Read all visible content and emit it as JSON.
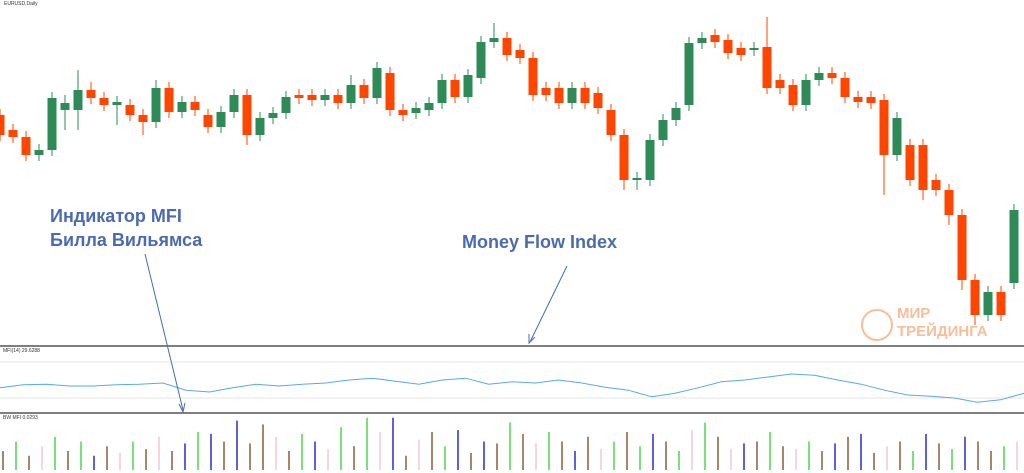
{
  "chart_data": [
    {
      "type": "candlestick",
      "title": "EURUSD,Daily",
      "up_color": "#2e8b57",
      "down_color": "#ff4500",
      "ylim": [
        0,
        345
      ],
      "annotations": [
        "Индикатор MFI",
        "Билла Вильямса",
        "Money Flow Index"
      ],
      "candles": [
        {
          "open": 230,
          "high": 236,
          "low": 204,
          "close": 210
        },
        {
          "open": 215,
          "high": 221,
          "low": 202,
          "close": 208
        },
        {
          "open": 208,
          "high": 214,
          "low": 184,
          "close": 190
        },
        {
          "open": 190,
          "high": 201,
          "low": 184,
          "close": 195
        },
        {
          "open": 195,
          "high": 253,
          "low": 189,
          "close": 247
        },
        {
          "open": 235,
          "high": 250,
          "low": 215,
          "close": 242
        },
        {
          "open": 235,
          "high": 275,
          "low": 215,
          "close": 255
        },
        {
          "open": 255,
          "high": 263,
          "low": 241,
          "close": 247
        },
        {
          "open": 247,
          "high": 253,
          "low": 234,
          "close": 240
        },
        {
          "open": 240,
          "high": 249,
          "low": 220,
          "close": 243
        },
        {
          "open": 240,
          "high": 246,
          "low": 224,
          "close": 230
        },
        {
          "open": 230,
          "high": 236,
          "low": 210,
          "close": 223
        },
        {
          "open": 223,
          "high": 265,
          "low": 217,
          "close": 257
        },
        {
          "open": 257,
          "high": 263,
          "low": 227,
          "close": 233
        },
        {
          "open": 233,
          "high": 249,
          "low": 227,
          "close": 243
        },
        {
          "open": 243,
          "high": 249,
          "low": 229,
          "close": 235
        },
        {
          "open": 230,
          "high": 236,
          "low": 212,
          "close": 218
        },
        {
          "open": 218,
          "high": 239,
          "low": 212,
          "close": 233
        },
        {
          "open": 233,
          "high": 256,
          "low": 227,
          "close": 250
        },
        {
          "open": 250,
          "high": 256,
          "low": 200,
          "close": 210
        },
        {
          "open": 210,
          "high": 233,
          "low": 204,
          "close": 227
        },
        {
          "open": 227,
          "high": 238,
          "low": 221,
          "close": 232
        },
        {
          "open": 232,
          "high": 254,
          "low": 226,
          "close": 248
        },
        {
          "open": 250,
          "high": 256,
          "low": 241,
          "close": 247
        },
        {
          "open": 250,
          "high": 256,
          "low": 239,
          "close": 245
        },
        {
          "open": 245,
          "high": 256,
          "low": 239,
          "close": 250
        },
        {
          "open": 250,
          "high": 256,
          "low": 236,
          "close": 242
        },
        {
          "open": 242,
          "high": 270,
          "low": 236,
          "close": 260
        },
        {
          "open": 260,
          "high": 266,
          "low": 241,
          "close": 247
        },
        {
          "open": 247,
          "high": 283,
          "low": 241,
          "close": 277
        },
        {
          "open": 272,
          "high": 278,
          "low": 229,
          "close": 235
        },
        {
          "open": 235,
          "high": 241,
          "low": 224,
          "close": 230
        },
        {
          "open": 232,
          "high": 243,
          "low": 226,
          "close": 237
        },
        {
          "open": 235,
          "high": 248,
          "low": 229,
          "close": 242
        },
        {
          "open": 242,
          "high": 271,
          "low": 236,
          "close": 265
        },
        {
          "open": 265,
          "high": 271,
          "low": 242,
          "close": 248
        },
        {
          "open": 248,
          "high": 276,
          "low": 242,
          "close": 270
        },
        {
          "open": 267,
          "high": 309,
          "low": 261,
          "close": 303
        },
        {
          "open": 303,
          "high": 322,
          "low": 297,
          "close": 307
        },
        {
          "open": 307,
          "high": 313,
          "low": 284,
          "close": 290
        },
        {
          "open": 295,
          "high": 301,
          "low": 281,
          "close": 287
        },
        {
          "open": 287,
          "high": 293,
          "low": 244,
          "close": 250
        },
        {
          "open": 257,
          "high": 263,
          "low": 244,
          "close": 250
        },
        {
          "open": 257,
          "high": 263,
          "low": 236,
          "close": 242
        },
        {
          "open": 242,
          "high": 263,
          "low": 236,
          "close": 257
        },
        {
          "open": 257,
          "high": 263,
          "low": 236,
          "close": 242
        },
        {
          "open": 252,
          "high": 258,
          "low": 231,
          "close": 237
        },
        {
          "open": 235,
          "high": 241,
          "low": 204,
          "close": 210
        },
        {
          "open": 210,
          "high": 216,
          "low": 155,
          "close": 165
        },
        {
          "open": 165,
          "high": 173,
          "low": 155,
          "close": 167
        },
        {
          "open": 165,
          "high": 211,
          "low": 159,
          "close": 205
        },
        {
          "open": 205,
          "high": 231,
          "low": 199,
          "close": 225
        },
        {
          "open": 225,
          "high": 243,
          "low": 219,
          "close": 237
        },
        {
          "open": 240,
          "high": 308,
          "low": 234,
          "close": 302
        },
        {
          "open": 302,
          "high": 313,
          "low": 296,
          "close": 307
        },
        {
          "open": 310,
          "high": 316,
          "low": 297,
          "close": 303
        },
        {
          "open": 305,
          "high": 311,
          "low": 286,
          "close": 292
        },
        {
          "open": 297,
          "high": 303,
          "low": 284,
          "close": 290
        },
        {
          "open": 295,
          "high": 303,
          "low": 289,
          "close": 297
        },
        {
          "open": 298,
          "high": 328,
          "low": 251,
          "close": 257
        },
        {
          "open": 265,
          "high": 271,
          "low": 251,
          "close": 257
        },
        {
          "open": 260,
          "high": 266,
          "low": 234,
          "close": 240
        },
        {
          "open": 240,
          "high": 271,
          "low": 234,
          "close": 265
        },
        {
          "open": 265,
          "high": 278,
          "low": 259,
          "close": 272
        },
        {
          "open": 272,
          "high": 278,
          "low": 261,
          "close": 267
        },
        {
          "open": 267,
          "high": 273,
          "low": 242,
          "close": 248
        },
        {
          "open": 248,
          "high": 254,
          "low": 237,
          "close": 243
        },
        {
          "open": 248,
          "high": 254,
          "low": 236,
          "close": 242
        },
        {
          "open": 245,
          "high": 251,
          "low": 150,
          "close": 190
        },
        {
          "open": 190,
          "high": 233,
          "low": 184,
          "close": 227
        },
        {
          "open": 200,
          "high": 206,
          "low": 159,
          "close": 165
        },
        {
          "open": 200,
          "high": 206,
          "low": 145,
          "close": 155
        },
        {
          "open": 165,
          "high": 171,
          "low": 149,
          "close": 155
        },
        {
          "open": 155,
          "high": 161,
          "low": 120,
          "close": 130
        },
        {
          "open": 130,
          "high": 136,
          "low": 55,
          "close": 65
        },
        {
          "open": 65,
          "high": 71,
          "low": 20,
          "close": 30
        },
        {
          "open": 30,
          "high": 59,
          "low": 24,
          "close": 53
        },
        {
          "open": 53,
          "high": 59,
          "low": 24,
          "close": 30
        },
        {
          "open": 62,
          "high": 141,
          "low": 56,
          "close": 135
        }
      ]
    },
    {
      "type": "line",
      "title": "MFI(14) 29.6288",
      "color": "#5aa9e6",
      "ylim": [
        0,
        100
      ],
      "levels": [
        20,
        80
      ],
      "values": [
        37,
        42,
        43,
        40,
        40,
        42,
        43,
        45,
        33,
        30,
        37,
        43,
        40,
        43,
        45,
        50,
        53,
        48,
        43,
        50,
        53,
        43,
        47,
        45,
        50,
        45,
        38,
        33,
        22,
        28,
        37,
        47,
        50,
        55,
        60,
        58,
        50,
        43,
        33,
        25,
        23,
        20,
        13,
        17,
        28
      ]
    },
    {
      "type": "bar",
      "title": "BW MFI 0.0293",
      "ylim": [
        0,
        60
      ],
      "values": [
        20,
        30,
        15,
        25,
        35,
        20,
        30,
        15,
        25,
        18,
        30,
        22,
        35,
        20,
        28,
        40,
        38,
        30,
        52,
        28,
        48,
        35,
        20,
        38,
        30,
        22,
        45,
        25,
        55,
        40,
        55,
        15,
        32,
        40,
        25,
        42,
        18,
        30,
        28,
        50,
        38,
        28,
        40,
        30,
        20,
        35,
        22,
        30,
        40,
        25,
        38,
        30,
        20,
        42,
        50,
        35,
        22,
        28,
        30,
        40,
        25,
        22,
        30,
        20,
        28,
        35,
        38,
        18,
        25,
        30,
        20,
        38,
        28,
        22,
        35,
        30,
        20,
        25,
        30
      ],
      "colors": [
        "#8b5e3c",
        "#4ed74e",
        "#8b5e3c",
        "#f2c6d6",
        "#4ed74e",
        "#8b5e3c",
        "#4ed74e",
        "#2b2bd0",
        "#8b5e3c",
        "#f2c6d6",
        "#4ed74e",
        "#8b5e3c",
        "#f2c6d6",
        "#8b5e3c",
        "#2b2bd0",
        "#4ed74e",
        "#2b2bd0",
        "#8b5e3c",
        "#2b2bd0",
        "#8b5e3c",
        "#8b5e3c",
        "#f2c6d6",
        "#8b5e3c",
        "#4ed74e",
        "#2b2bd0",
        "#f2c6d6",
        "#4ed74e",
        "#8b5e3c",
        "#4ed74e",
        "#f2c6d6",
        "#2b2bd0",
        "#8b5e3c",
        "#f2c6d6",
        "#8b5e3c",
        "#4ed74e",
        "#2b2bd0",
        "#8b5e3c",
        "#2b2bd0",
        "#8b5e3c",
        "#4ed74e",
        "#8b5e3c",
        "#f2c6d6",
        "#4ed74e",
        "#8b5e3c",
        "#2b2bd0",
        "#8b5e3c",
        "#f2c6d6",
        "#4ed74e",
        "#8b5e3c",
        "#4ed74e",
        "#2b2bd0",
        "#8b5e3c",
        "#4ed74e",
        "#f2c6d6",
        "#4ed74e",
        "#8b5e3c",
        "#f2c6d6",
        "#2b2bd0",
        "#8b5e3c",
        "#4ed74e",
        "#8b5e3c",
        "#f2c6d6",
        "#4ed74e",
        "#8b5e3c",
        "#2b2bd0",
        "#8b5e3c",
        "#2b2bd0",
        "#8b5e3c",
        "#f2c6d6",
        "#8b5e3c",
        "#4ed74e",
        "#2b2bd0",
        "#8b5e3c",
        "#4ed74e",
        "#2b2bd0",
        "#8b5e3c",
        "#8b5e3c",
        "#4ed74e",
        "#f2c6d6"
      ]
    }
  ],
  "logo": {
    "line1": "МИР",
    "line2": "ТРЕЙДИНГА"
  }
}
